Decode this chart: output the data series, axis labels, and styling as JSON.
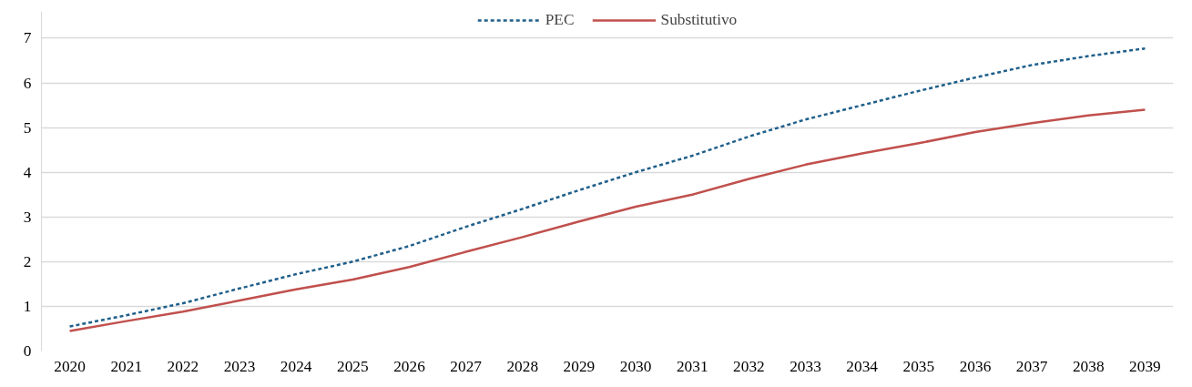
{
  "chart_data": {
    "type": "line",
    "categories": [
      "2020",
      "2021",
      "2022",
      "2023",
      "2024",
      "2025",
      "2026",
      "2027",
      "2028",
      "2029",
      "2030",
      "2031",
      "2032",
      "2033",
      "2034",
      "2035",
      "2036",
      "2037",
      "2038",
      "2039"
    ],
    "series": [
      {
        "name": "PEC",
        "color": "#1f5f8b",
        "line_style": "dashed",
        "values": [
          0.55,
          0.8,
          1.07,
          1.4,
          1.72,
          2.0,
          2.35,
          2.78,
          3.18,
          3.6,
          4.0,
          4.37,
          4.8,
          5.18,
          5.5,
          5.82,
          6.12,
          6.4,
          6.6,
          6.77
        ]
      },
      {
        "name": "Substitutivo",
        "color": "#c0504d",
        "line_style": "solid",
        "values": [
          0.45,
          0.67,
          0.88,
          1.13,
          1.38,
          1.6,
          1.88,
          2.22,
          2.55,
          2.9,
          3.23,
          3.5,
          3.85,
          4.17,
          4.42,
          4.65,
          4.9,
          5.1,
          5.27,
          5.4
        ]
      }
    ],
    "ylim": [
      0,
      7.6
    ],
    "yticks": [
      0,
      1,
      2,
      3,
      4,
      5,
      6,
      7
    ],
    "grid": "y",
    "legend": "top",
    "marker": "none"
  }
}
